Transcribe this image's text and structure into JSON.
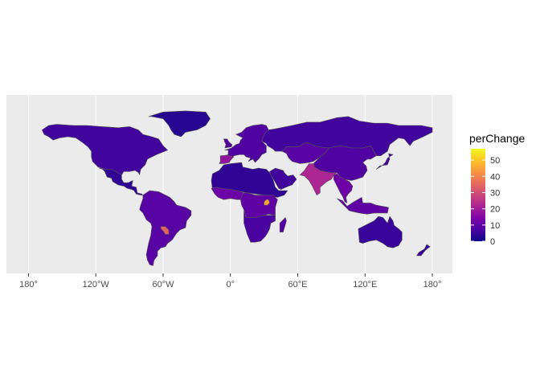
{
  "chart_data": {
    "type": "choropleth map",
    "title": "",
    "xlabel": "",
    "ylabel": "",
    "x_ticks": [
      "180°",
      "120°W",
      "60°W",
      "0°",
      "60°E",
      "120°E",
      "180°"
    ],
    "xlim": [
      -180,
      180
    ],
    "ylim": [
      -58,
      84
    ],
    "grid": true,
    "legend": {
      "title": "perChange",
      "position": "right",
      "ticks": [
        "0",
        "10",
        "20",
        "30",
        "40",
        "50"
      ],
      "range": [
        0,
        57
      ],
      "palette": "plasma"
    },
    "colors": {
      "panel_background": "#ebebeb",
      "border": "#555555",
      "low": "#0d0887",
      "mid": "#9c179e",
      "high": "#f0f921"
    },
    "regions": [
      {
        "name": "North America",
        "value": 6
      },
      {
        "name": "Greenland",
        "value": 3
      },
      {
        "name": "Central America",
        "value": 4
      },
      {
        "name": "South America",
        "value": 9
      },
      {
        "name": "Paraguay",
        "value": 34
      },
      {
        "name": "Europe",
        "value": 8
      },
      {
        "name": "Iberia",
        "value": 18
      },
      {
        "name": "Northern Africa",
        "value": 4
      },
      {
        "name": "West Africa",
        "value": 12
      },
      {
        "name": "Central Africa",
        "value": 10
      },
      {
        "name": "Uganda",
        "value": 45
      },
      {
        "name": "Southern Africa",
        "value": 7
      },
      {
        "name": "Arabia",
        "value": 6
      },
      {
        "name": "Russia",
        "value": 6
      },
      {
        "name": "Central Asia",
        "value": 9
      },
      {
        "name": "South Asia",
        "value": 22
      },
      {
        "name": "East Asia",
        "value": 8
      },
      {
        "name": "Southeast Asia",
        "value": 12
      },
      {
        "name": "Japan",
        "value": 7
      },
      {
        "name": "Indonesia",
        "value": 10
      },
      {
        "name": "Australia",
        "value": 5
      },
      {
        "name": "New Zealand",
        "value": 5
      },
      {
        "name": "Madagascar",
        "value": 9
      },
      {
        "name": "United Kingdom",
        "value": 8
      }
    ]
  }
}
